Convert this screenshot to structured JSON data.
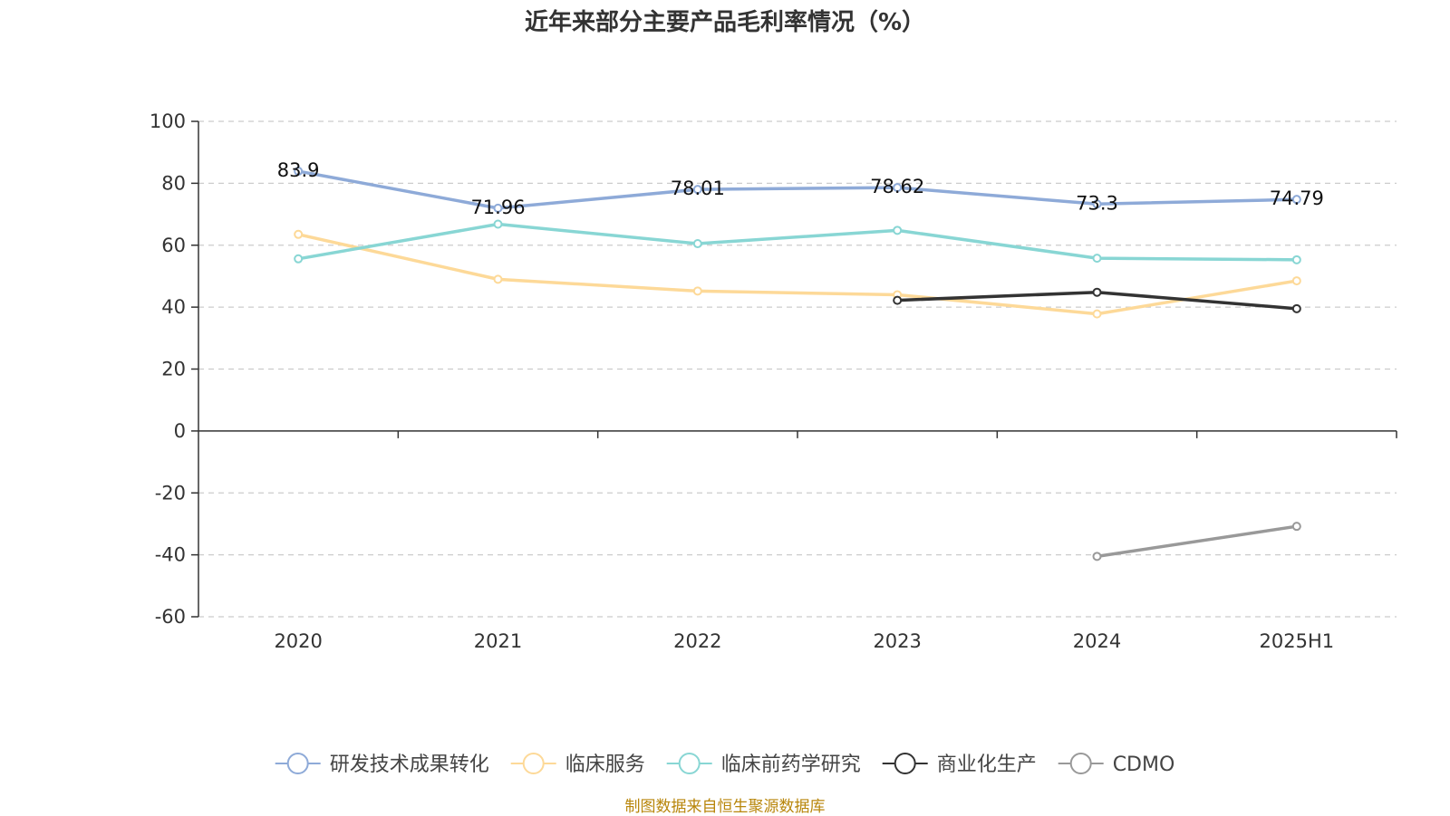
{
  "chart_data": {
    "type": "line",
    "title": "近年来部分主要产品毛利率情况（%）",
    "categories": [
      "2020",
      "2021",
      "2022",
      "2023",
      "2024",
      "2025H1"
    ],
    "ylim": [
      -60,
      100
    ],
    "yticks": [
      100,
      80,
      60,
      40,
      20,
      0,
      -20,
      -40,
      -60
    ],
    "grid": true,
    "legend_position": "bottom",
    "series": [
      {
        "name": "研发技术成果转化",
        "color": "#8eaad8",
        "values": [
          83.9,
          71.96,
          78.01,
          78.62,
          73.3,
          74.79
        ],
        "show_labels": true
      },
      {
        "name": "临床服务",
        "color": "#fdd998",
        "values": [
          63.5,
          49.0,
          45.2,
          44.0,
          37.8,
          48.5
        ],
        "show_labels": false
      },
      {
        "name": "临床前药学研究",
        "color": "#88d6d4",
        "values": [
          55.6,
          66.8,
          60.5,
          64.8,
          55.8,
          55.3
        ],
        "show_labels": false
      },
      {
        "name": "商业化生产",
        "color": "#333333",
        "values": [
          null,
          null,
          null,
          42.2,
          44.8,
          39.5
        ],
        "show_labels": false
      },
      {
        "name": "CDMO",
        "color": "#999999",
        "values": [
          null,
          null,
          null,
          null,
          -40.5,
          -30.8
        ],
        "show_labels": false
      }
    ]
  },
  "source_note": "制图数据来自恒生聚源数据库"
}
